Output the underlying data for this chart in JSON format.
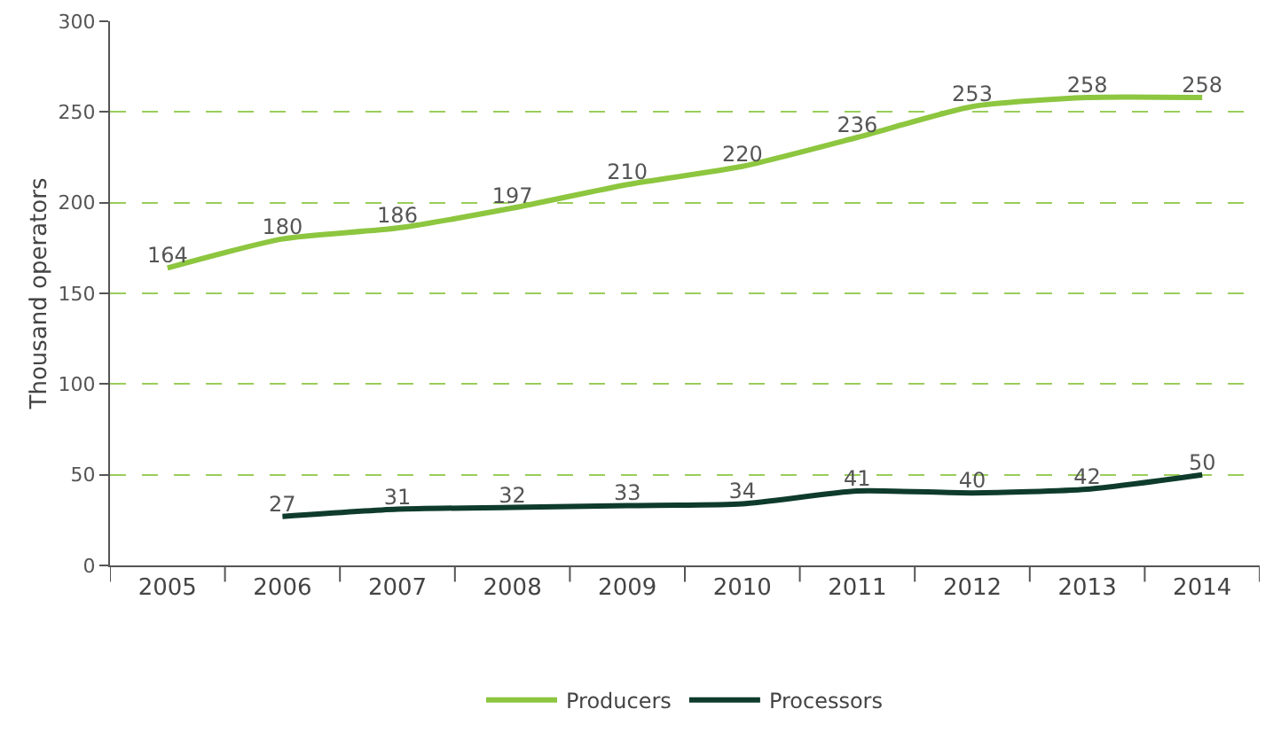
{
  "chart_data": {
    "type": "line",
    "ylabel": "Thousand operators",
    "categories": [
      "2005",
      "2006",
      "2007",
      "2008",
      "2009",
      "2010",
      "2011",
      "2012",
      "2013",
      "2014"
    ],
    "series": [
      {
        "name": "Producers",
        "color": "#8dc63f",
        "values": [
          164,
          180,
          186,
          197,
          210,
          220,
          236,
          253,
          258,
          258
        ]
      },
      {
        "name": "Processors",
        "color": "#0e3b2c",
        "values": [
          null,
          27,
          31,
          32,
          33,
          34,
          41,
          40,
          42,
          50
        ]
      }
    ],
    "ylim": [
      0,
      300
    ],
    "yticks": [
      0,
      50,
      100,
      150,
      200,
      250,
      300
    ],
    "grid": "y",
    "legend": "bottom",
    "data_labels": true,
    "marker": "none",
    "line_style": "solid"
  }
}
